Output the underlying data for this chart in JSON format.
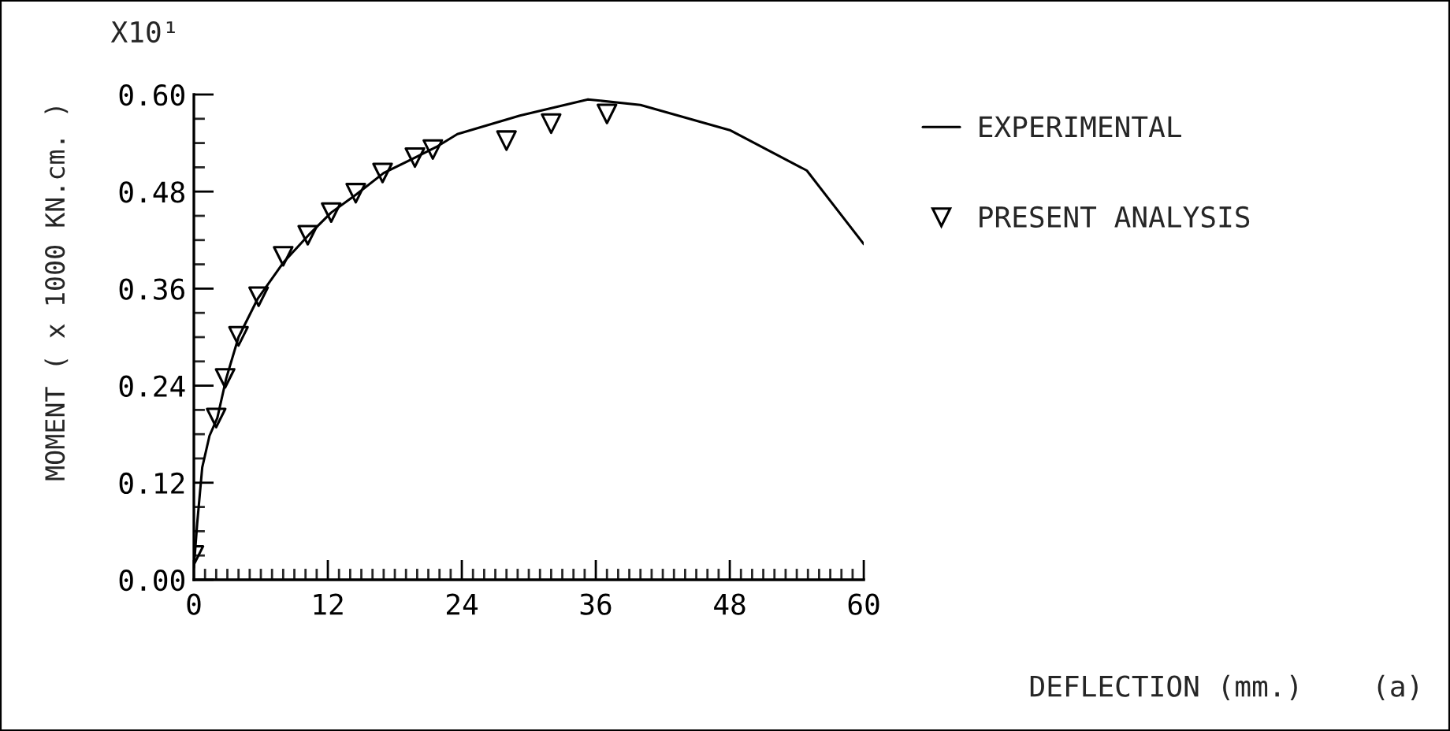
{
  "chart_data": {
    "type": "line",
    "ylabel": "MOMENT ( x 1000 KN.cm. )",
    "annotations": [
      "X10¹",
      "DEFLECTION (mm.)",
      "(a)"
    ],
    "xlim": [
      0,
      60
    ],
    "xticks": [
      0,
      12,
      24,
      36,
      48,
      60
    ],
    "ylim": [
      0,
      0.6
    ],
    "yticks": [
      {
        "value": 0,
        "label": "0.00"
      },
      0.12,
      0.24,
      0.36,
      0.48,
      {
        "value": 0.6,
        "label": "0.60"
      }
    ],
    "grid": false,
    "legend": "right",
    "series": [
      {
        "name": "EXPERIMENTAL",
        "type": "line",
        "color": "#000000",
        "marker": "none",
        "line_style": "solid",
        "x": [
          0.0,
          0.3,
          0.75,
          1.4,
          2.1,
          2.9,
          4.0,
          5.7,
          8.0,
          10.4,
          12.3,
          14.6,
          17.0,
          19.8,
          21.7,
          23.6,
          29.2,
          35.3,
          40.0,
          48.0,
          54.9,
          60.0
        ],
        "values": [
          0.015,
          0.07,
          0.139,
          0.178,
          0.2,
          0.249,
          0.3,
          0.347,
          0.392,
          0.428,
          0.454,
          0.477,
          0.503,
          0.522,
          0.535,
          0.551,
          0.574,
          0.594,
          0.587,
          0.556,
          0.506,
          0.415
        ]
      },
      {
        "name": "PRESENT ANALYSIS",
        "type": "scatter",
        "color": "#000000",
        "marker": "triangle",
        "x": [
          0.0,
          2.0,
          2.8,
          4.0,
          5.8,
          8.0,
          10.2,
          12.3,
          14.5,
          16.9,
          19.8,
          21.4,
          28.0,
          32.0,
          37.0
        ],
        "values": [
          0.03,
          0.2,
          0.249,
          0.301,
          0.35,
          0.4,
          0.426,
          0.454,
          0.478,
          0.503,
          0.522,
          0.532,
          0.543,
          0.564,
          0.576
        ]
      }
    ]
  }
}
